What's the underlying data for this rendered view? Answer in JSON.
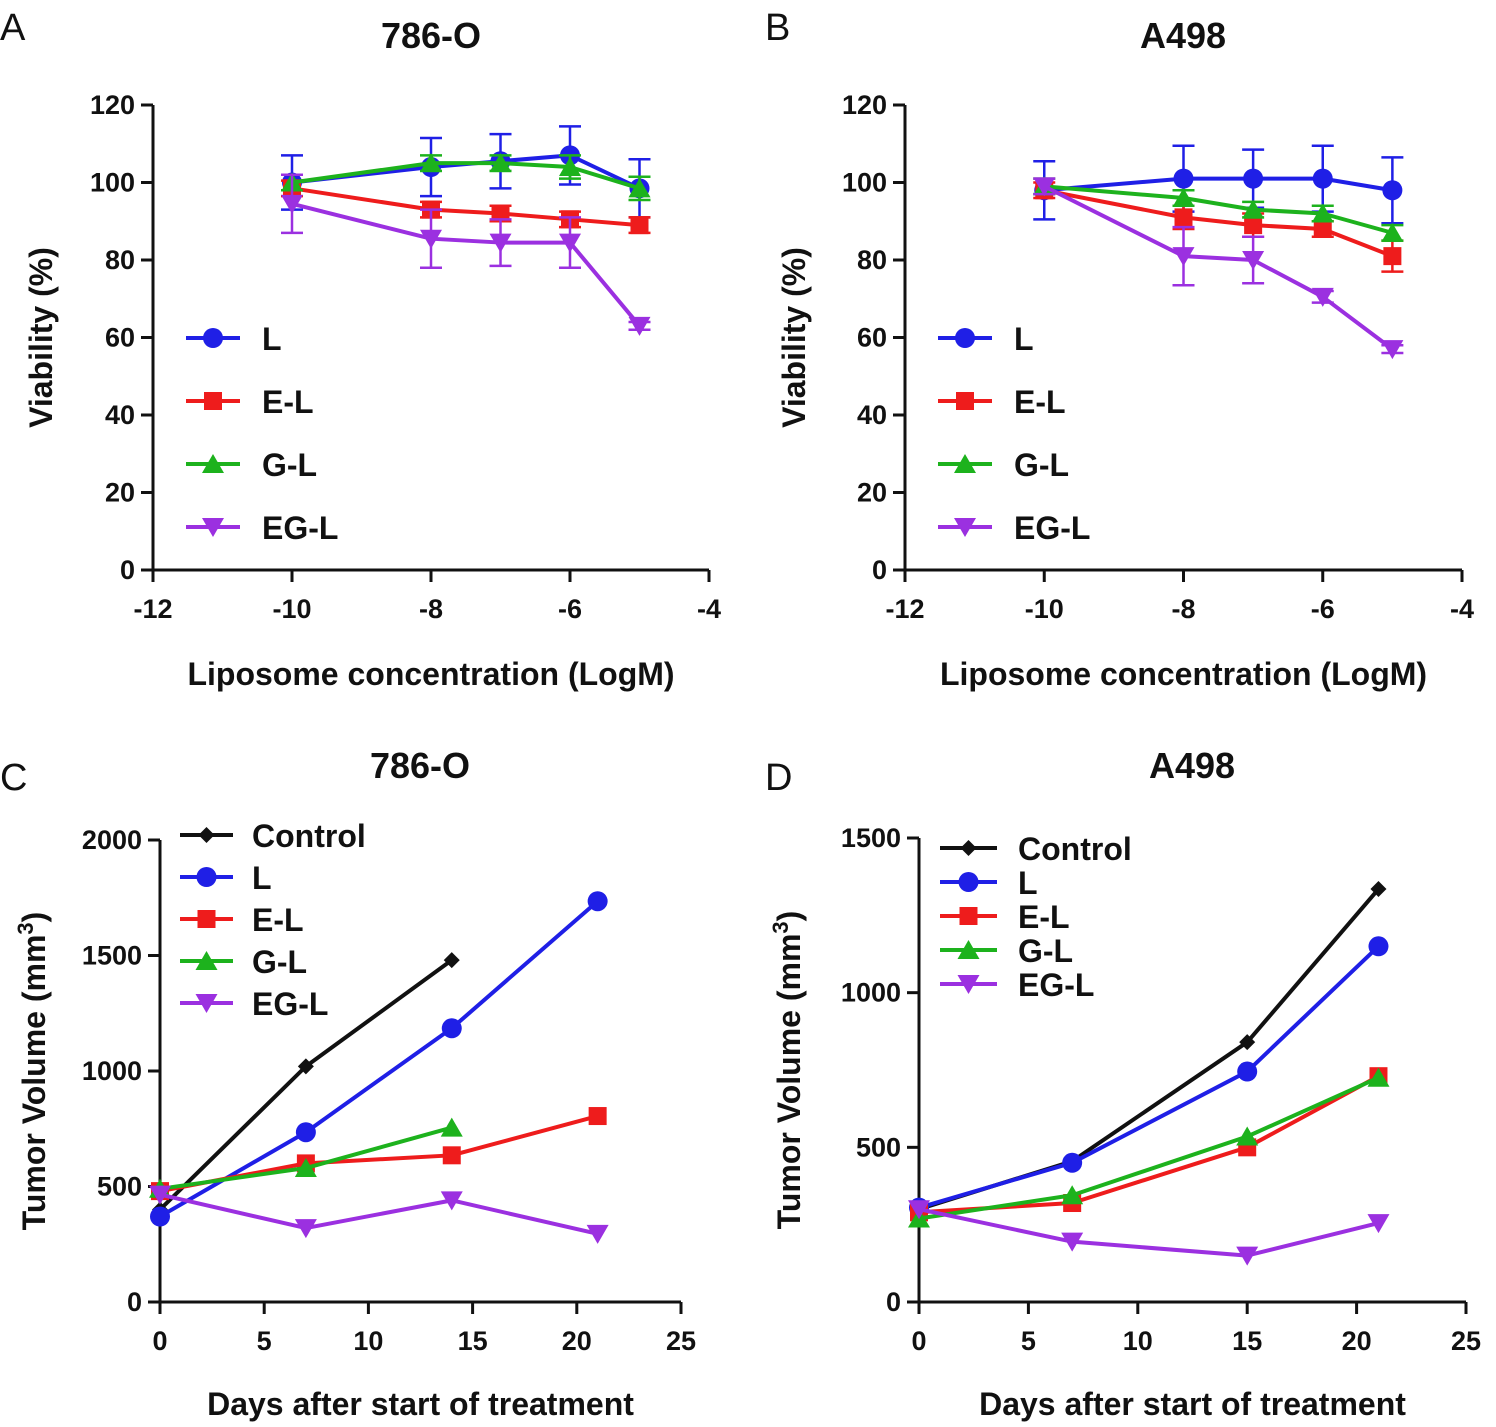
{
  "colors": {
    "L": "#1f1fe6",
    "E-L": "#ee1c1c",
    "G-L": "#1db21d",
    "EG-L": "#9b30e0",
    "Control": "#111111",
    "axis": "#111111"
  },
  "chart_data": [
    {
      "panel": "A",
      "type": "line",
      "title": "786-O",
      "xlabel": "Liposome concentration (LogM)",
      "ylabel": "Viability (%)",
      "xlim": [
        -12,
        -4
      ],
      "ylim": [
        0,
        120
      ],
      "xticks": [
        -12,
        -10,
        -8,
        -6,
        -4
      ],
      "yticks": [
        0,
        20,
        40,
        60,
        80,
        100,
        120
      ],
      "xtick_labels": [
        "-12",
        "-10",
        "-8",
        "-6",
        "-4"
      ],
      "ytick_labels": [
        "0",
        "20",
        "40",
        "60",
        "80",
        "100",
        "120"
      ],
      "x": [
        -10,
        -8,
        -7,
        -6,
        -5
      ],
      "series": [
        {
          "name": "L",
          "marker": "circle",
          "values": [
            100,
            104,
            105.5,
            107,
            98.5
          ],
          "errors": [
            7,
            7.5,
            7,
            7.5,
            7.5
          ]
        },
        {
          "name": "E-L",
          "marker": "square",
          "values": [
            98.5,
            93,
            92,
            90.5,
            89
          ],
          "errors": [
            2,
            2,
            2,
            2,
            2
          ]
        },
        {
          "name": "G-L",
          "marker": "triangle-up",
          "values": [
            100,
            105,
            105,
            104,
            98.5
          ],
          "errors": [
            2,
            2,
            2,
            3,
            3
          ]
        },
        {
          "name": "EG-L",
          "marker": "triangle-down",
          "values": [
            94.5,
            85.5,
            84.5,
            84.5,
            63
          ],
          "errors": [
            7.5,
            7.5,
            6,
            6.5,
            1
          ]
        }
      ],
      "legend": [
        "L",
        "E-L",
        "G-L",
        "EG-L"
      ],
      "legend_position": "left"
    },
    {
      "panel": "B",
      "type": "line",
      "title": "A498",
      "xlabel": "Liposome concentration (LogM)",
      "ylabel": "Viability (%)",
      "xlim": [
        -12,
        -4
      ],
      "ylim": [
        0,
        120
      ],
      "xticks": [
        -12,
        -10,
        -8,
        -6,
        -4
      ],
      "yticks": [
        0,
        20,
        40,
        60,
        80,
        100,
        120
      ],
      "xtick_labels": [
        "-12",
        "-10",
        "-8",
        "-6",
        "-4"
      ],
      "ytick_labels": [
        "0",
        "20",
        "40",
        "60",
        "80",
        "100",
        "120"
      ],
      "x": [
        -10,
        -8,
        -7,
        -6,
        -5
      ],
      "series": [
        {
          "name": "L",
          "marker": "circle",
          "values": [
            98,
            101,
            101,
            101,
            98
          ],
          "errors": [
            7.5,
            8.5,
            7.5,
            8.5,
            8.5
          ]
        },
        {
          "name": "E-L",
          "marker": "square",
          "values": [
            98,
            91,
            89,
            88,
            81
          ],
          "errors": [
            2,
            3,
            3,
            2,
            4
          ]
        },
        {
          "name": "G-L",
          "marker": "triangle-up",
          "values": [
            99,
            96,
            93,
            92,
            87
          ],
          "errors": [
            2,
            2,
            2,
            2,
            2
          ]
        },
        {
          "name": "EG-L",
          "marker": "triangle-down",
          "values": [
            99,
            81,
            80,
            70.5,
            57
          ],
          "errors": [
            2,
            7.5,
            6,
            1.5,
            1
          ]
        }
      ],
      "legend": [
        "L",
        "E-L",
        "G-L",
        "EG-L"
      ],
      "legend_position": "left"
    },
    {
      "panel": "C",
      "type": "line",
      "title": "786-O",
      "xlabel": "Days after start of treatment",
      "ylabel": "Tumor Volume (mm³)",
      "ylabel_parts": [
        "Tumor Volume (mm",
        "3",
        ")"
      ],
      "xlim": [
        0,
        25
      ],
      "ylim": [
        0,
        2000
      ],
      "xticks": [
        0,
        5,
        10,
        15,
        20,
        25
      ],
      "yticks": [
        0,
        500,
        1000,
        1500,
        2000
      ],
      "xtick_labels": [
        "0",
        "5",
        "10",
        "15",
        "20",
        "25"
      ],
      "ytick_labels": [
        "0",
        "500",
        "1000",
        "1500",
        "2000"
      ],
      "series": [
        {
          "name": "Control",
          "marker": "diamond",
          "x": [
            0,
            7,
            14
          ],
          "values": [
            400,
            1020,
            1480
          ]
        },
        {
          "name": "L",
          "marker": "circle",
          "x": [
            0,
            7,
            14,
            21
          ],
          "values": [
            370,
            735,
            1185,
            1735
          ]
        },
        {
          "name": "E-L",
          "marker": "square",
          "x": [
            0,
            7,
            14,
            21
          ],
          "values": [
            480,
            600,
            635,
            805
          ]
        },
        {
          "name": "G-L",
          "marker": "triangle-up",
          "x": [
            0,
            7,
            14
          ],
          "values": [
            490,
            580,
            755
          ]
        },
        {
          "name": "EG-L",
          "marker": "triangle-down",
          "x": [
            0,
            7,
            14,
            21
          ],
          "values": [
            465,
            320,
            440,
            295
          ]
        }
      ],
      "legend": [
        "Control",
        "L",
        "E-L",
        "G-L",
        "EG-L"
      ],
      "legend_position": "top-left"
    },
    {
      "panel": "D",
      "type": "line",
      "title": "A498",
      "xlabel": "Days after start of treatment",
      "ylabel": "Tumor Volume (mm³)",
      "ylabel_parts": [
        "Tumor Volume (mm",
        "3",
        ")"
      ],
      "xlim": [
        0,
        25
      ],
      "ylim": [
        0,
        1500
      ],
      "xticks": [
        0,
        5,
        10,
        15,
        20,
        25
      ],
      "yticks": [
        0,
        500,
        1000,
        1500
      ],
      "xtick_labels": [
        "0",
        "5",
        "10",
        "15",
        "20",
        "25"
      ],
      "ytick_labels": [
        "0",
        "500",
        "1000",
        "1500"
      ],
      "series": [
        {
          "name": "Control",
          "marker": "diamond",
          "x": [
            0,
            7,
            15,
            21
          ],
          "values": [
            300,
            455,
            840,
            1335
          ]
        },
        {
          "name": "L",
          "marker": "circle",
          "x": [
            0,
            7,
            15,
            21
          ],
          "values": [
            305,
            450,
            745,
            1150
          ]
        },
        {
          "name": "E-L",
          "marker": "square",
          "x": [
            0,
            7,
            15,
            21
          ],
          "values": [
            290,
            320,
            500,
            730
          ]
        },
        {
          "name": "G-L",
          "marker": "triangle-up",
          "x": [
            0,
            7,
            15,
            21
          ],
          "values": [
            270,
            345,
            535,
            725
          ]
        },
        {
          "name": "EG-L",
          "marker": "triangle-down",
          "x": [
            0,
            7,
            15,
            21
          ],
          "values": [
            300,
            195,
            150,
            255
          ]
        }
      ],
      "legend": [
        "Control",
        "L",
        "E-L",
        "G-L",
        "EG-L"
      ],
      "legend_position": "top-left"
    }
  ]
}
